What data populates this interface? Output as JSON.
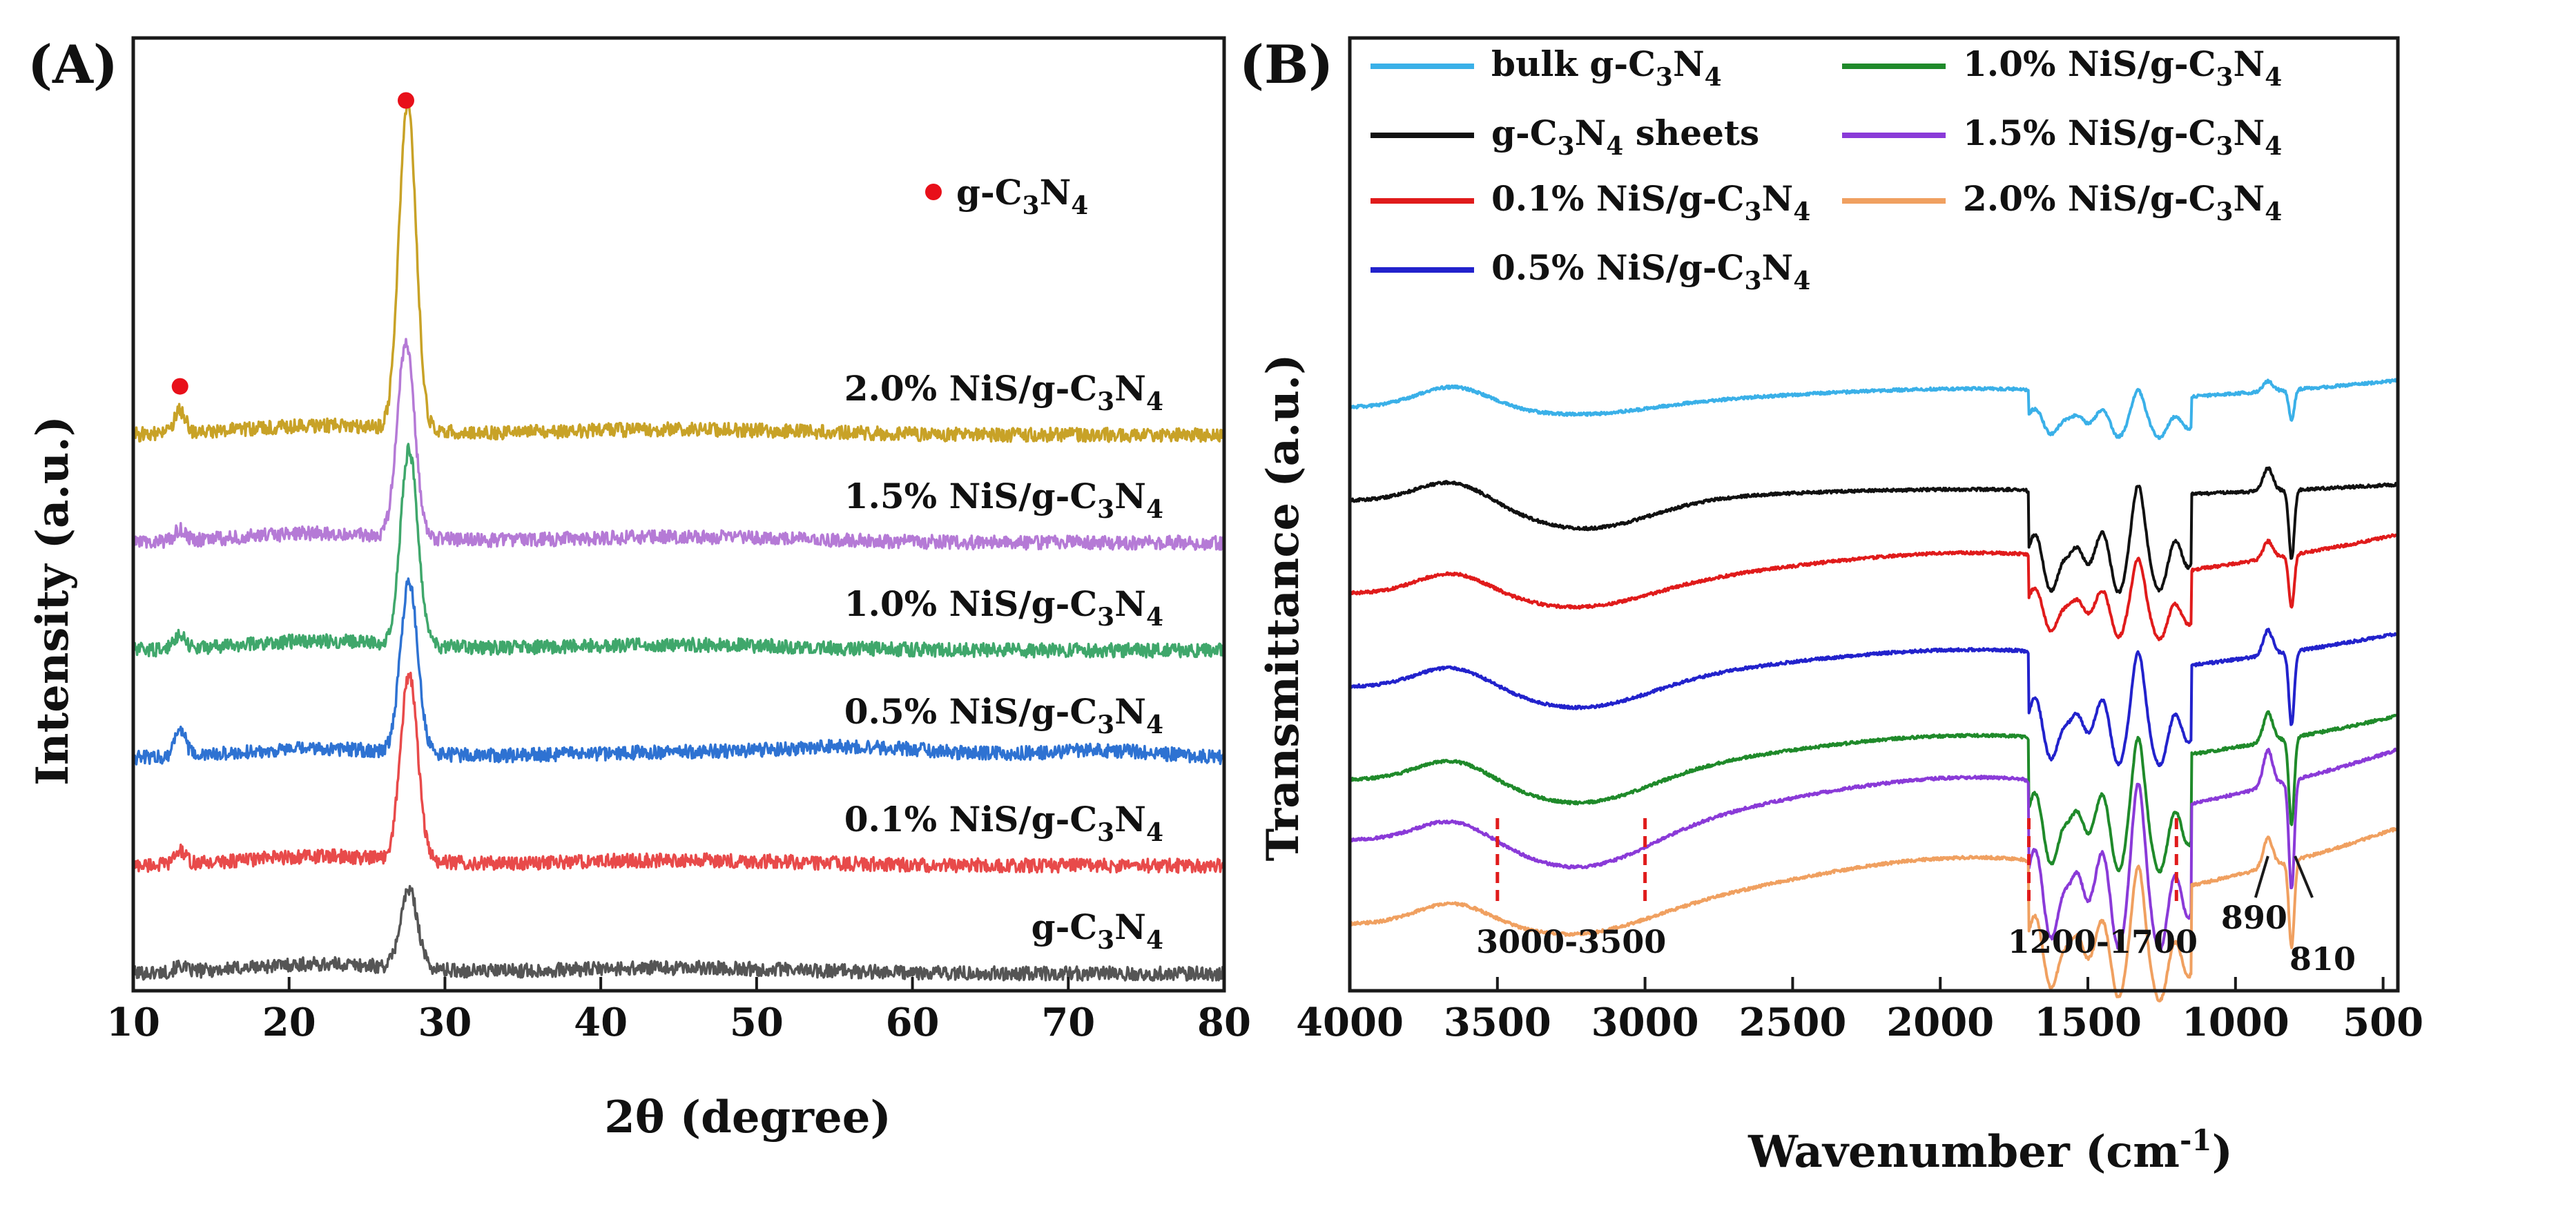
{
  "chart_data": [
    {
      "panel": "(A)",
      "type": "line",
      "title": "",
      "xlabel": "2θ (degree)",
      "ylabel": "Intensity (a.u.)",
      "xlim": [
        10,
        80
      ],
      "xticks": [
        10,
        20,
        30,
        40,
        50,
        60,
        70,
        80
      ],
      "yticks": "none",
      "grid": false,
      "marker_legend": {
        "color": "#e8101a",
        "label": "g-C",
        "sub1": "3",
        "mid": "N",
        "sub2": "4"
      },
      "marker_points_2theta": [
        13.0,
        27.5
      ],
      "series": [
        {
          "name": "g-C3N4",
          "label": {
            "pre": "g-C",
            "sub1": "3",
            "mid": "N",
            "sub2": "4"
          },
          "color": "#555555",
          "main_peak": 27.7,
          "baseline_rank": 0,
          "peak_height": 0.42,
          "minor_peak": 0.03
        },
        {
          "name": "0.1% NiS/g-C3N4",
          "label": {
            "pre": "0.1% NiS/g-C",
            "sub1": "3",
            "mid": "N",
            "sub2": "4"
          },
          "color": "#e84a4a",
          "main_peak": 27.7,
          "baseline_rank": 1,
          "peak_height": 1.0,
          "minor_peak": 0.07
        },
        {
          "name": "0.5% NiS/g-C3N4",
          "label": {
            "pre": "0.5% NiS/g-C",
            "sub1": "3",
            "mid": "N",
            "sub2": "4"
          },
          "color": "#2e72d2",
          "main_peak": 27.7,
          "baseline_rank": 2,
          "peak_height": 0.92,
          "minor_peak": 0.15
        },
        {
          "name": "1.0% NiS/g-C3N4",
          "label": {
            "pre": "1.0% NiS/g-C",
            "sub1": "3",
            "mid": "N",
            "sub2": "4"
          },
          "color": "#3fa76b",
          "main_peak": 27.7,
          "baseline_rank": 3,
          "peak_height": 1.05,
          "minor_peak": 0.08
        },
        {
          "name": "1.5% NiS/g-C3N4",
          "label": {
            "pre": "1.5% NiS/g-C",
            "sub1": "3",
            "mid": "N",
            "sub2": "4"
          },
          "color": "#b57ad6",
          "main_peak": 27.5,
          "baseline_rank": 4,
          "peak_height": 1.05,
          "minor_peak": 0.06
        },
        {
          "name": "2.0% NiS/g-C3N4",
          "label": {
            "pre": "2.0% NiS/g-C",
            "sub1": "3",
            "mid": "N",
            "sub2": "4"
          },
          "color": "#c8a227",
          "main_peak": 27.6,
          "baseline_rank": 5,
          "peak_height": 1.75,
          "minor_peak": 0.12
        }
      ]
    },
    {
      "panel": "(B)",
      "type": "line",
      "title": "",
      "xlabel_pre": "Wavenumber (cm",
      "xlabel_sup": "-1",
      "xlabel_post": ")",
      "ylabel": "Transmittance (a.u.)",
      "xlim": [
        4000,
        450
      ],
      "xticks": [
        4000,
        3500,
        3000,
        2500,
        2000,
        1500,
        1000,
        500
      ],
      "yticks": "none",
      "grid": false,
      "legend_position": "top",
      "series": [
        {
          "name": "bulk g-C3N4",
          "label": {
            "pre": "bulk g-C",
            "sub1": "3",
            "mid": "N",
            "sub2": "4",
            "post": ""
          },
          "color": "#3ab0e8",
          "offset_rank": 5,
          "tilt": 0.25,
          "band_scale": 0.35,
          "broad_scale": 0.15
        },
        {
          "name": "g-C3N4 sheets",
          "label": {
            "pre": "g-C",
            "sub1": "3",
            "mid": "N",
            "sub2": "4",
            "post": " sheets"
          },
          "color": "#111111",
          "offset_rank": 4,
          "tilt": 0.15,
          "band_scale": 0.8,
          "broad_scale": 0.45
        },
        {
          "name": "0.1% NiS/g-C3N4",
          "label": {
            "pre": "0.1% NiS/g-C",
            "sub1": "3",
            "mid": "N",
            "sub2": "4",
            "post": ""
          },
          "color": "#e01b1b",
          "offset_rank": 3,
          "tilt": 0.55,
          "band_scale": 0.6,
          "broad_scale": 0.3
        },
        {
          "name": "0.5% NiS/g-C3N4",
          "label": {
            "pre": "0.5% NiS/g-C",
            "sub1": "3",
            "mid": "N",
            "sub2": "4",
            "post": ""
          },
          "color": "#2222cc",
          "offset_rank": 2,
          "tilt": 0.5,
          "band_scale": 0.85,
          "broad_scale": 0.4
        },
        {
          "name": "1.0% NiS/g-C3N4",
          "label": {
            "pre": "1.0% NiS/g-C",
            "sub1": "3",
            "mid": "N",
            "sub2": "4",
            "post": ""
          },
          "color": "#1f8a2a",
          "offset_rank": 1,
          "tilt": 0.6,
          "band_scale": 1.0,
          "broad_scale": 0.45
        },
        {
          "name": "1.5% NiS/g-C3N4",
          "label": {
            "pre": "1.5% NiS/g-C",
            "sub1": "3",
            "mid": "N",
            "sub2": "4",
            "post": ""
          },
          "color": "#8a3ad8",
          "offset_rank": 0.35,
          "tilt": 0.85,
          "band_scale": 1.25,
          "broad_scale": 0.55
        },
        {
          "name": "2.0% NiS/g-C3N4",
          "label": {
            "pre": "2.0% NiS/g-C",
            "sub1": "3",
            "mid": "N",
            "sub2": "4",
            "post": ""
          },
          "color": "#f0a060",
          "offset_rank": -0.55,
          "tilt": 0.9,
          "band_scale": 1.0,
          "broad_scale": 0.3
        }
      ],
      "annotations": [
        {
          "text": "3000-3500",
          "range": [
            3500,
            3000
          ]
        },
        {
          "text": "1200-1700",
          "range": [
            1700,
            1200
          ]
        },
        {
          "text": "890",
          "at": 890
        },
        {
          "text": "810",
          "at": 810
        }
      ]
    }
  ]
}
